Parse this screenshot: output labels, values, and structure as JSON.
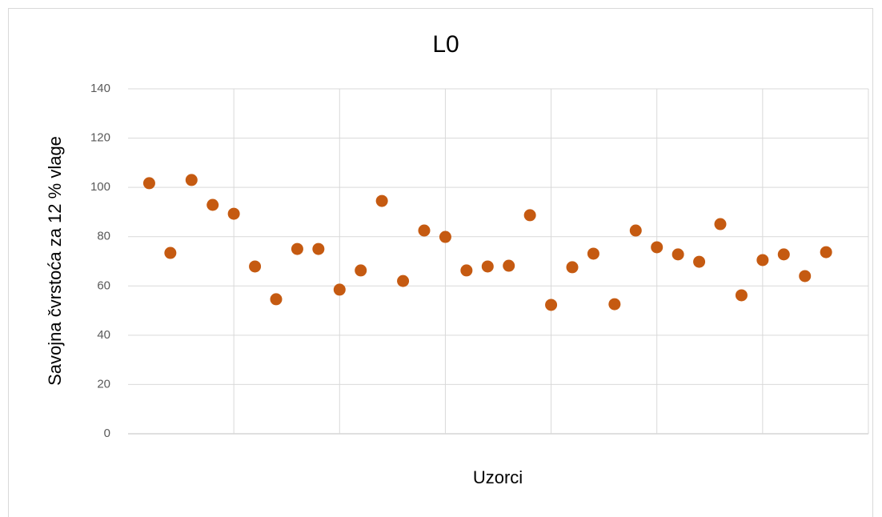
{
  "chart_data": {
    "type": "scatter",
    "title": "L0",
    "x_label": "Uzorci",
    "y_label": "Savojna čvrstoća za 12 % vlage",
    "color": "#c55a11",
    "x": [
      1,
      2,
      3,
      4,
      5,
      6,
      7,
      8,
      9,
      10,
      11,
      12,
      13,
      14,
      15,
      16,
      17,
      18,
      19,
      20,
      21,
      22,
      23,
      24,
      25,
      26,
      27,
      28,
      29,
      30,
      31,
      32,
      33
    ],
    "values": [
      101.7,
      73.4,
      103.0,
      92.9,
      89.3,
      67.9,
      54.6,
      75.0,
      75.0,
      58.5,
      66.3,
      94.5,
      62.0,
      82.5,
      79.9,
      66.3,
      67.9,
      68.2,
      88.7,
      52.3,
      67.6,
      73.1,
      52.6,
      82.5,
      75.7,
      72.8,
      69.8,
      85.1,
      56.2,
      70.5,
      72.8,
      64.0,
      73.7
    ],
    "xlim": [
      0,
      35
    ],
    "xticks": [
      5,
      10,
      15,
      20,
      25,
      30,
      35
    ],
    "ylim": [
      0,
      140
    ],
    "yticks": [
      0,
      20,
      40,
      60,
      80,
      100,
      120,
      140
    ],
    "grid": true
  }
}
